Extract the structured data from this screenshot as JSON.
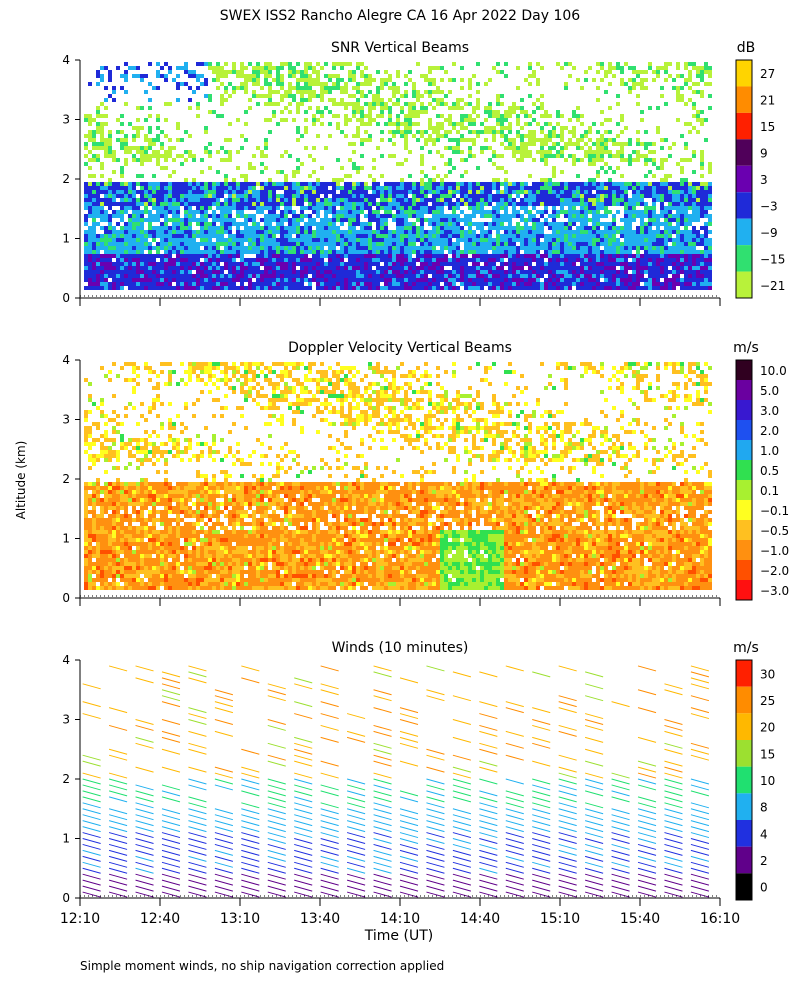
{
  "title": "SWEX ISS2 Rancho Alegre CA  16 Apr 2022 Day 106",
  "y_axis_label": "Altitude (km)",
  "x_axis_label": "Time (UT)",
  "footnote": "Simple moment winds, no ship navigation correction applied",
  "x_ticks": [
    "12:10",
    "12:40",
    "13:10",
    "13:40",
    "14:10",
    "14:40",
    "15:10",
    "15:40",
    "16:10"
  ],
  "chart_data": [
    {
      "type": "heatmap",
      "title": "SNR Vertical Beams",
      "xlabel": "Time (UT)",
      "ylabel": "Altitude (km)",
      "xlim": [
        "12:10",
        "16:10"
      ],
      "ylim": [
        0,
        4
      ],
      "y_ticks": [
        0,
        1,
        2,
        3,
        4
      ],
      "colorbar": {
        "unit": "dB",
        "labels": [
          "27",
          "21",
          "15",
          "9",
          "3",
          "−3",
          "−9",
          "−15",
          "−21"
        ],
        "colors": [
          "#ffd400",
          "#ff8c00",
          "#ff2000",
          "#50005a",
          "#6a00b0",
          "#1f2ad8",
          "#20b0f0",
          "#30e070",
          "#b8f23a"
        ]
      }
    },
    {
      "type": "heatmap",
      "title": "Doppler Velocity Vertical Beams",
      "xlabel": "Time (UT)",
      "ylabel": "Altitude (km)",
      "xlim": [
        "12:10",
        "16:10"
      ],
      "ylim": [
        0,
        4
      ],
      "y_ticks": [
        0,
        1,
        2,
        3,
        4
      ],
      "colorbar": {
        "unit": "m/s",
        "labels": [
          "10.0",
          "5.0",
          "3.0",
          "2.0",
          "1.0",
          "0.5",
          "0.1",
          "−0.1",
          "−0.5",
          "−1.0",
          "−2.0",
          "−3.0"
        ],
        "colors": [
          "#300020",
          "#6a00a0",
          "#3818d0",
          "#1e50f0",
          "#20a8f0",
          "#30e050",
          "#a8f030",
          "#ffff20",
          "#ffc020",
          "#ff9010",
          "#ff5000",
          "#ff1010"
        ]
      }
    },
    {
      "type": "scatter",
      "title": "Winds (10 minutes)",
      "xlabel": "Time (UT)",
      "ylabel": "Altitude (km)",
      "xlim": [
        "12:10",
        "16:10"
      ],
      "ylim": [
        0,
        4
      ],
      "y_ticks": [
        0,
        1,
        2,
        3,
        4
      ],
      "colorbar": {
        "unit": "m/s",
        "labels": [
          "30",
          "25",
          "20",
          "15",
          "10",
          "8",
          "4",
          "2",
          "0"
        ],
        "colors": [
          "#ff2000",
          "#ff8c00",
          "#ffb800",
          "#9ce030",
          "#20e070",
          "#20b0f0",
          "#2030e0",
          "#60008a",
          "#000000"
        ]
      }
    }
  ]
}
